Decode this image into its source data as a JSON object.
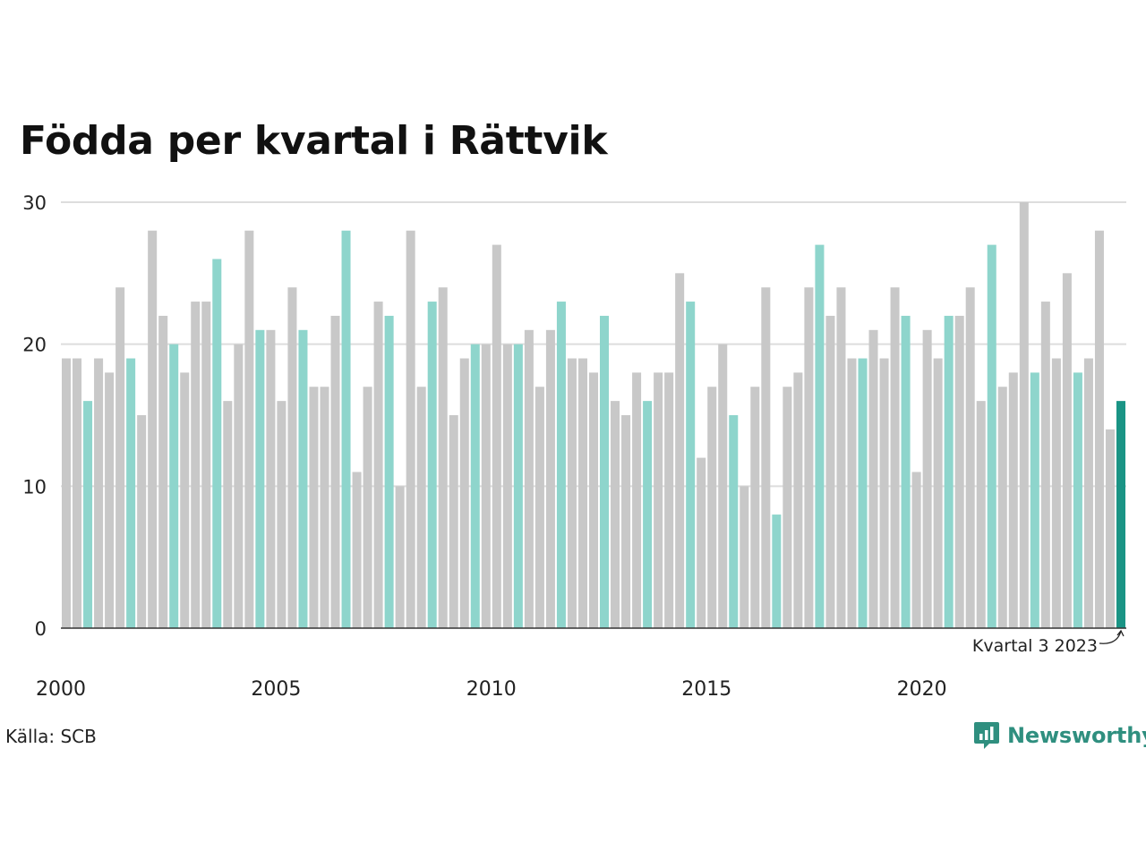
{
  "chart_data": {
    "type": "bar",
    "title": "Födda per kvartal i Rättvik",
    "xlabel": "",
    "ylabel": "",
    "ylim": [
      0,
      30
    ],
    "yticks": [
      0,
      10,
      20,
      30
    ],
    "xtick_labels": [
      "2000",
      "2005",
      "2010",
      "2015",
      "2020"
    ],
    "start_year": 2000,
    "grid": true,
    "highlight_quarter": 3,
    "values": [
      19,
      19,
      16,
      19,
      18,
      24,
      19,
      15,
      28,
      22,
      20,
      18,
      23,
      23,
      26,
      16,
      20,
      28,
      21,
      21,
      16,
      24,
      21,
      17,
      17,
      22,
      28,
      11,
      17,
      23,
      22,
      10,
      28,
      17,
      23,
      24,
      15,
      19,
      20,
      20,
      27,
      20,
      20,
      21,
      17,
      21,
      23,
      19,
      19,
      18,
      22,
      16,
      15,
      18,
      16,
      18,
      18,
      25,
      23,
      12,
      17,
      20,
      15,
      10,
      17,
      24,
      8,
      17,
      18,
      24,
      27,
      22,
      24,
      19,
      19,
      21,
      19,
      24,
      22,
      11,
      21,
      19,
      22,
      22,
      24,
      16,
      27,
      17,
      18,
      30,
      18,
      23,
      19,
      25,
      18,
      19,
      28,
      14,
      16
    ],
    "annotation": "Kvartal 3 2023",
    "colors": {
      "default": "#c8c8c8",
      "highlight": "#8ed5cc",
      "latest": "#1a9485",
      "grid": "#dddddd",
      "axis": "#333333"
    }
  },
  "footer": {
    "source": "Källa: SCB",
    "logo_text": "Newsworthy"
  }
}
